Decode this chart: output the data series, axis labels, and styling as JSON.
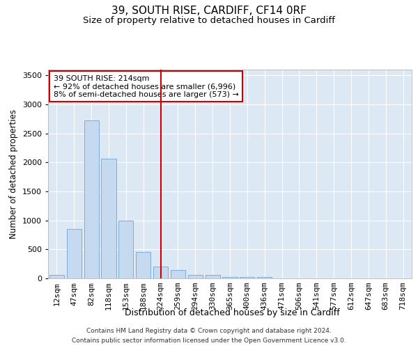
{
  "title": "39, SOUTH RISE, CARDIFF, CF14 0RF",
  "subtitle": "Size of property relative to detached houses in Cardiff",
  "xlabel": "Distribution of detached houses by size in Cardiff",
  "ylabel": "Number of detached properties",
  "categories": [
    "12sqm",
    "47sqm",
    "82sqm",
    "118sqm",
    "153sqm",
    "188sqm",
    "224sqm",
    "259sqm",
    "294sqm",
    "330sqm",
    "365sqm",
    "400sqm",
    "436sqm",
    "471sqm",
    "506sqm",
    "541sqm",
    "577sqm",
    "612sqm",
    "647sqm",
    "683sqm",
    "718sqm"
  ],
  "values": [
    55,
    850,
    2720,
    2060,
    1000,
    460,
    210,
    150,
    65,
    55,
    30,
    20,
    20,
    0,
    0,
    0,
    0,
    0,
    0,
    0,
    0
  ],
  "bar_color": "#c5d9ef",
  "bar_edge_color": "#7aace0",
  "vline_x_index": 6,
  "vline_color": "#cc0000",
  "annotation_lines": [
    "39 SOUTH RISE: 214sqm",
    "← 92% of detached houses are smaller (6,996)",
    "8% of semi-detached houses are larger (573) →"
  ],
  "annotation_box_color": "#cc0000",
  "ylim": [
    0,
    3600
  ],
  "yticks": [
    0,
    500,
    1000,
    1500,
    2000,
    2500,
    3000,
    3500
  ],
  "plot_bg_color": "#dde8f5",
  "grid_color": "#ffffff",
  "footer_line1": "Contains HM Land Registry data © Crown copyright and database right 2024.",
  "footer_line2": "Contains public sector information licensed under the Open Government Licence v3.0.",
  "title_fontsize": 11,
  "subtitle_fontsize": 9.5,
  "xlabel_fontsize": 9,
  "ylabel_fontsize": 8.5,
  "tick_fontsize": 8,
  "footer_fontsize": 6.5
}
